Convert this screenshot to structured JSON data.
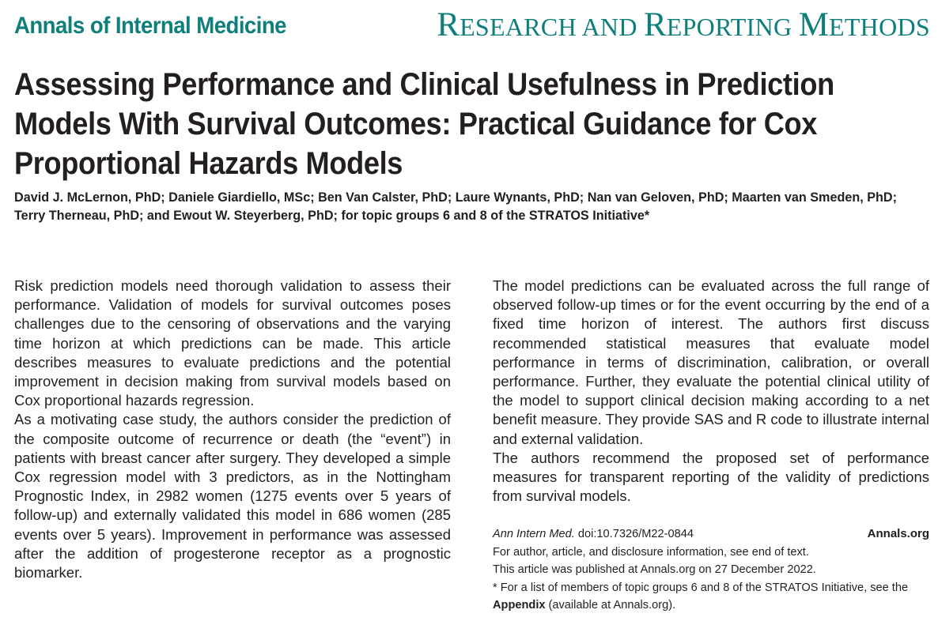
{
  "header": {
    "journal_name": "Annals of Internal Medicine",
    "section": {
      "word1_initial": "R",
      "word1_rest": "ESEARCH AND ",
      "word2_initial": "R",
      "word2_rest": "EPORTING ",
      "word3_initial": "M",
      "word3_rest": "ETHODS"
    }
  },
  "article": {
    "title": "Assessing Performance and Clinical Usefulness in Prediction Models With Survival Outcomes: Practical Guidance for Cox Proportional Hazards Models",
    "authors": "David J. McLernon, PhD; Daniele Giardiello, MSc; Ben Van Calster, PhD; Laure Wynants, PhD; Nan van Geloven, PhD; Maarten van Smeden, PhD; Terry Therneau, PhD; and Ewout W. Steyerberg, PhD; for topic groups 6 and 8 of the STRATOS Initiative*"
  },
  "abstract": {
    "left_p1": "Risk prediction models need thorough validation to assess their performance. Validation of models for survival outcomes poses challenges due to the censoring of observations and the varying time horizon at which predictions can be made. This article describes measures to evaluate predictions and the potential improvement in decision making from survival models based on Cox proportional hazards regression.",
    "left_p2": "As a motivating case study, the authors consider the prediction of the composite outcome of recurrence or death (the “event”) in patients with breast cancer after surgery. They developed a simple Cox regression model with 3 predictors, as in the Nottingham Prognostic Index, in 2982 women (1275 events over 5 years of follow-up) and externally validated this model in 686 women (285 events over 5 years). Improvement in performance was assessed after the addition of progesterone receptor as a prognostic biomarker.",
    "right_p1": "The model predictions can be evaluated across the full range of observed follow-up times or for the event occurring by the end of a fixed time horizon of interest. The authors first discuss recommended statistical measures that evaluate model performance in terms of discrimination, calibration, or overall performance. Further, they evaluate the potential clinical utility of the model to support clinical decision making according to a net benefit measure. They provide SAS and R code to illustrate internal and external validation.",
    "right_p2": "The authors recommend the proposed set of performance measures for transparent reporting of the validity of predictions from survival models."
  },
  "meta": {
    "journal_abbr": "Ann Intern Med.",
    "doi": "doi:10.7326/M22-0844",
    "site": "Annals.org",
    "info_line": "For author, article, and disclosure information, see end of text.",
    "published_line": "This article was published at Annals.org on 27 December 2022.",
    "footnote_prefix": "* For a list of members of topic groups 6 and 8 of the STRATOS Initiative, see the ",
    "footnote_link": "Appendix",
    "footnote_suffix": " (available at Annals.org)."
  },
  "colors": {
    "accent": "#0e7f7a",
    "text": "#231f20"
  }
}
